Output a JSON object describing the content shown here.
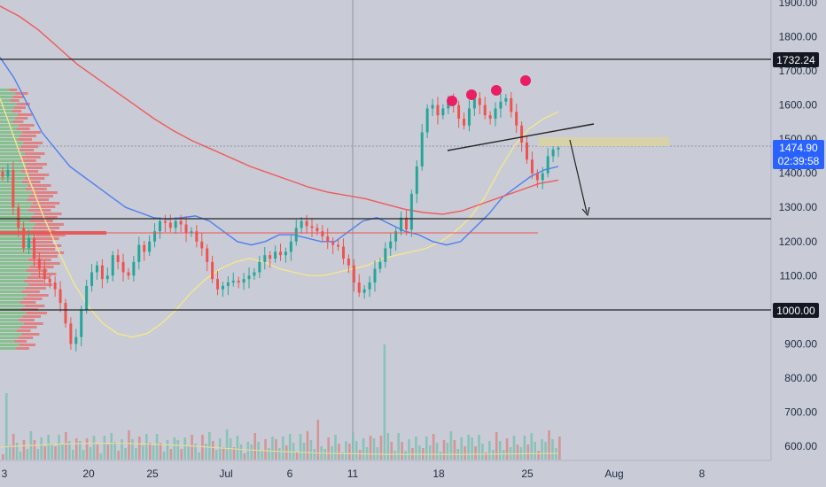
{
  "colors": {
    "background": "#c9ccd6",
    "up": "#26a69a",
    "down": "#ef5350",
    "ma_yellow": "#f4e68c",
    "ma_blue": "#4f7ff0",
    "ma_red": "#ef5a5a",
    "marker": "#e91e63",
    "zone": "#d8d2a8",
    "badge_dark": "#131722",
    "badge_blue": "#2962ff"
  },
  "chart_data": {
    "type": "candlestick",
    "symbol_price_axis": {
      "ticks": [
        "1900.00",
        "1800.00",
        "1700.00",
        "1600.00",
        "1500.00",
        "1400.00",
        "1300.00",
        "1200.00",
        "1100.00",
        "1000.00",
        "900.00",
        "800.00",
        "700.00",
        "600.00"
      ],
      "range": [
        560,
        1925
      ]
    },
    "time_axis": {
      "ticks": [
        "3",
        "20",
        "25",
        "Jul",
        "6",
        "11",
        "18",
        "25",
        "Aug",
        "8"
      ]
    },
    "price_labels": {
      "resistance": "1732.24",
      "support": "1000.00",
      "current_price": "1474.90",
      "countdown": "02:39:58"
    },
    "horizontal_levels": [
      1732.24,
      1266,
      1000
    ],
    "poc_level": 1222,
    "current_price": 1474.9,
    "close_series": [
      1390,
      1410,
      1300,
      1240,
      1180,
      1210,
      1150,
      1120,
      1090,
      1080,
      1060,
      1020,
      960,
      900,
      920,
      1000,
      1070,
      1110,
      1130,
      1090,
      1100,
      1160,
      1140,
      1110,
      1100,
      1140,
      1190,
      1170,
      1200,
      1230,
      1260,
      1255,
      1240,
      1260,
      1250,
      1225,
      1230,
      1200,
      1180,
      1140,
      1090,
      1060,
      1070,
      1080,
      1085,
      1080,
      1090,
      1100,
      1110,
      1140,
      1160,
      1150,
      1170,
      1160,
      1170,
      1200,
      1240,
      1260,
      1245,
      1240,
      1230,
      1215,
      1200,
      1190,
      1185,
      1150,
      1130,
      1080,
      1050,
      1060,
      1080,
      1120,
      1140,
      1180,
      1200,
      1230,
      1270,
      1235,
      1340,
      1420,
      1520,
      1590,
      1600,
      1570,
      1590,
      1610,
      1600,
      1560,
      1540,
      1590,
      1620,
      1600,
      1570,
      1560,
      1590,
      1610,
      1620,
      1580,
      1540,
      1490,
      1440,
      1400,
      1380,
      1400,
      1450,
      1470,
      1474.9
    ],
    "moving_averages": [
      {
        "color": "#f4e68c",
        "values": [
          1620,
          1500,
          1380,
          1270,
          1170,
          1080,
          1010,
          960,
          930,
          920,
          930,
          960,
          1000,
          1050,
          1090,
          1120,
          1140,
          1150,
          1140,
          1120,
          1110,
          1100,
          1100,
          1110,
          1120,
          1130,
          1150,
          1160,
          1170,
          1180,
          1200,
          1230,
          1270,
          1330,
          1410,
          1480,
          1530,
          1560,
          1580
        ]
      },
      {
        "color": "#4f7ff0",
        "values": [
          1740,
          1680,
          1600,
          1520,
          1470,
          1420,
          1390,
          1360,
          1330,
          1300,
          1285,
          1270,
          1265,
          1270,
          1275,
          1260,
          1230,
          1200,
          1190,
          1200,
          1220,
          1220,
          1210,
          1200,
          1200,
          1230,
          1260,
          1270,
          1250,
          1230,
          1220,
          1200,
          1190,
          1200,
          1240,
          1280,
          1330,
          1360,
          1390,
          1410,
          1420
        ]
      },
      {
        "color": "#ef5a5a",
        "values": [
          1890,
          1860,
          1820,
          1770,
          1720,
          1680,
          1640,
          1600,
          1560,
          1525,
          1495,
          1470,
          1445,
          1420,
          1400,
          1380,
          1360,
          1345,
          1335,
          1325,
          1310,
          1295,
          1285,
          1280,
          1290,
          1310,
          1330,
          1350,
          1370,
          1380
        ]
      }
    ],
    "annotations": [
      "head-and-shoulders tops",
      "neckline",
      "downward arrow target"
    ]
  }
}
